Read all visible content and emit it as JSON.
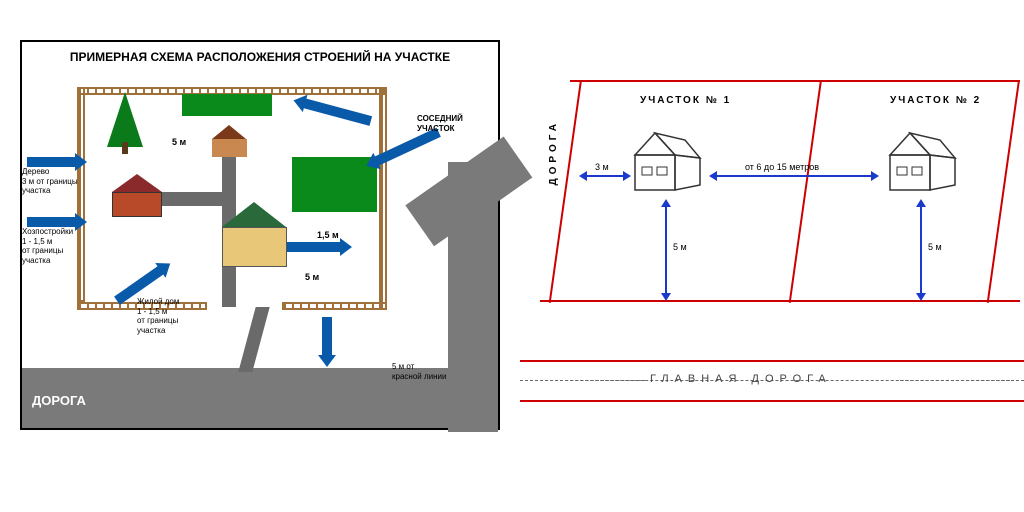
{
  "left": {
    "title": "ПРИМЕРНАЯ СХЕМА РАСПОЛОЖЕНИЯ СТРОЕНИЙ НА УЧАСТКЕ",
    "road_label": "ДОРОГА",
    "neighbor_label": "СОСЕДНИЙ УЧАСТОК",
    "callout_tree": "Дерево\n3 м от границы\nучастка",
    "callout_outbuilding": "Хозпостройки\n1 - 1,5 м\nот границы\nучастка",
    "callout_house": "Жилой дом\n1 - 1,5 м\nот границы\nучастка",
    "callout_redline": "5 м от\nкрасной линии",
    "dim_5m_a": "5 м",
    "dim_5m_b": "5 м",
    "dim_1_5m": "1,5 м",
    "colors": {
      "road": "#7a7a7a",
      "fence": "#a0703a",
      "grass": "#0a8a1a",
      "roof_main": "#2a6a3a",
      "wall_main": "#e8c878",
      "roof_red": "#8a2a2a",
      "wall_red": "#b84a2a",
      "tree": "#0a7a1a",
      "arrow": "#0a5aaa"
    }
  },
  "right": {
    "plot1_label": "УЧАСТОК № 1",
    "plot2_label": "УЧАСТОК № 2",
    "road_vertical": "ДОРОГА",
    "main_road": "ГЛАВНАЯ ДОРОГА",
    "dist_between": "от 6 до 15 метров",
    "dist_3m": "3 м",
    "dist_5m_a": "5 м",
    "dist_5m_b": "5 м",
    "colors": {
      "line": "#cc0000",
      "arrow": "#1a3acc",
      "house_outline": "#333333"
    }
  }
}
